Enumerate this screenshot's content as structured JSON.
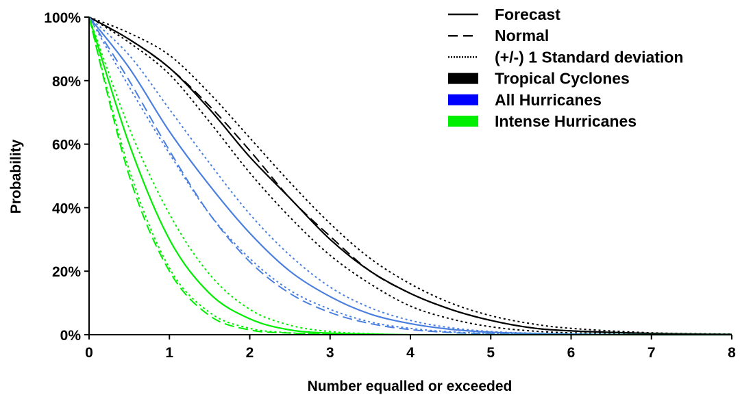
{
  "chart_data": {
    "type": "line",
    "title": "",
    "xlabel": "Number equalled or exceeded",
    "ylabel": "Probability",
    "xlim": [
      0,
      8
    ],
    "ylim": [
      0,
      100
    ],
    "x_ticks": [
      "0",
      "1",
      "2",
      "3",
      "4",
      "5",
      "6",
      "7",
      "8"
    ],
    "y_ticks": [
      "0%",
      "20%",
      "40%",
      "60%",
      "80%",
      "100%"
    ],
    "grid": false,
    "legend_position": "top-right",
    "legend": {
      "styles": [
        {
          "label": "Forecast",
          "dash": "solid"
        },
        {
          "label": "Normal",
          "dash": "dashed"
        },
        {
          "label": "(+/-) 1 Standard deviation",
          "dash": "dotted"
        }
      ],
      "groups": [
        {
          "label": "Tropical Cyclones",
          "color": "#000000"
        },
        {
          "label": "All Hurricanes",
          "color": "#0000ff"
        },
        {
          "label": "Intense Hurricanes",
          "color": "#00ee00"
        }
      ]
    },
    "x": [
      0,
      0.5,
      1,
      1.5,
      2,
      2.5,
      3,
      3.5,
      4,
      4.5,
      5,
      5.5,
      6,
      7,
      8
    ],
    "series": [
      {
        "name": "Tropical Cyclones Forecast",
        "group": "Tropical Cyclones",
        "style": "solid",
        "color": "#000000",
        "line_color": "#000000",
        "values": [
          100,
          93,
          84,
          71,
          56,
          43,
          30,
          20,
          13,
          8,
          4.5,
          2.2,
          1.2,
          0.4,
          0.1
        ]
      },
      {
        "name": "Tropical Cyclones Normal",
        "group": "Tropical Cyclones",
        "style": "dashed",
        "color": "#000000",
        "line_color": "#000000",
        "values": [
          100,
          93,
          84,
          72,
          58,
          43,
          31,
          20,
          13,
          8,
          4.5,
          2.2,
          1.2,
          0.4,
          0.1
        ]
      },
      {
        "name": "Tropical Cyclones +1 SD",
        "group": "Tropical Cyclones",
        "style": "dotted",
        "color": "#000000",
        "line_color": "#000000",
        "values": [
          100,
          95,
          88,
          76,
          62,
          48,
          35,
          24,
          16,
          10,
          6,
          3.5,
          2,
          0.6,
          0.2
        ]
      },
      {
        "name": "Tropical Cyclones -1 SD",
        "group": "Tropical Cyclones",
        "style": "dotted",
        "color": "#000000",
        "line_color": "#000000",
        "values": [
          100,
          92,
          82,
          67,
          51,
          37,
          25,
          16,
          9,
          5,
          2.5,
          1.2,
          0.6,
          0.2,
          0
        ]
      },
      {
        "name": "All Hurricanes Forecast",
        "group": "All Hurricanes",
        "style": "solid",
        "color": "#0000ff",
        "line_color": "#4a7fe0",
        "values": [
          100,
          84,
          64,
          47,
          32,
          20,
          12,
          6.5,
          3.5,
          1.7,
          0.8,
          0.4,
          0.2,
          0,
          0
        ]
      },
      {
        "name": "All Hurricanes Normal",
        "group": "All Hurricanes",
        "style": "dashed",
        "color": "#0000ff",
        "line_color": "#4a7fe0",
        "values": [
          100,
          80,
          58,
          38,
          23,
          13,
          7,
          3.5,
          1.6,
          0.7,
          0.3,
          0.1,
          0,
          0,
          0
        ]
      },
      {
        "name": "All Hurricanes +1 SD",
        "group": "All Hurricanes",
        "style": "dotted",
        "color": "#0000ff",
        "line_color": "#4a7fe0",
        "values": [
          100,
          88,
          71,
          54,
          38,
          25,
          15,
          8.5,
          4.5,
          2.2,
          1,
          0.5,
          0.2,
          0,
          0
        ]
      },
      {
        "name": "All Hurricanes -1 SD",
        "group": "All Hurricanes",
        "style": "dotted",
        "color": "#0000ff",
        "line_color": "#4a7fe0",
        "values": [
          100,
          78,
          57,
          38,
          24,
          14,
          8,
          4,
          2,
          0.9,
          0.4,
          0.2,
          0.1,
          0,
          0
        ]
      },
      {
        "name": "Intense Hurricanes Forecast",
        "group": "Intense Hurricanes",
        "style": "solid",
        "color": "#00ee00",
        "line_color": "#00ee00",
        "values": [
          100,
          60,
          30,
          13,
          5,
          1.5,
          0.5,
          0.2,
          0,
          0,
          0,
          0,
          0,
          0,
          0
        ]
      },
      {
        "name": "Intense Hurricanes Normal",
        "group": "Intense Hurricanes",
        "style": "dashed",
        "color": "#00ee00",
        "line_color": "#00ee00",
        "values": [
          100,
          50,
          20,
          6,
          1.5,
          0.5,
          0.1,
          0,
          0,
          0,
          0,
          0,
          0,
          0,
          0
        ]
      },
      {
        "name": "Intense Hurricanes +1 SD",
        "group": "Intense Hurricanes",
        "style": "dotted",
        "color": "#00ee00",
        "line_color": "#00ee00",
        "values": [
          100,
          65,
          38,
          19,
          8,
          3,
          1,
          0.3,
          0,
          0,
          0,
          0,
          0,
          0,
          0
        ]
      },
      {
        "name": "Intense Hurricanes -1 SD",
        "group": "Intense Hurricanes",
        "style": "dotted",
        "color": "#00ee00",
        "line_color": "#00ee00",
        "values": [
          100,
          52,
          21,
          7,
          2,
          0.6,
          0.2,
          0,
          0,
          0,
          0,
          0,
          0,
          0,
          0
        ]
      }
    ]
  }
}
